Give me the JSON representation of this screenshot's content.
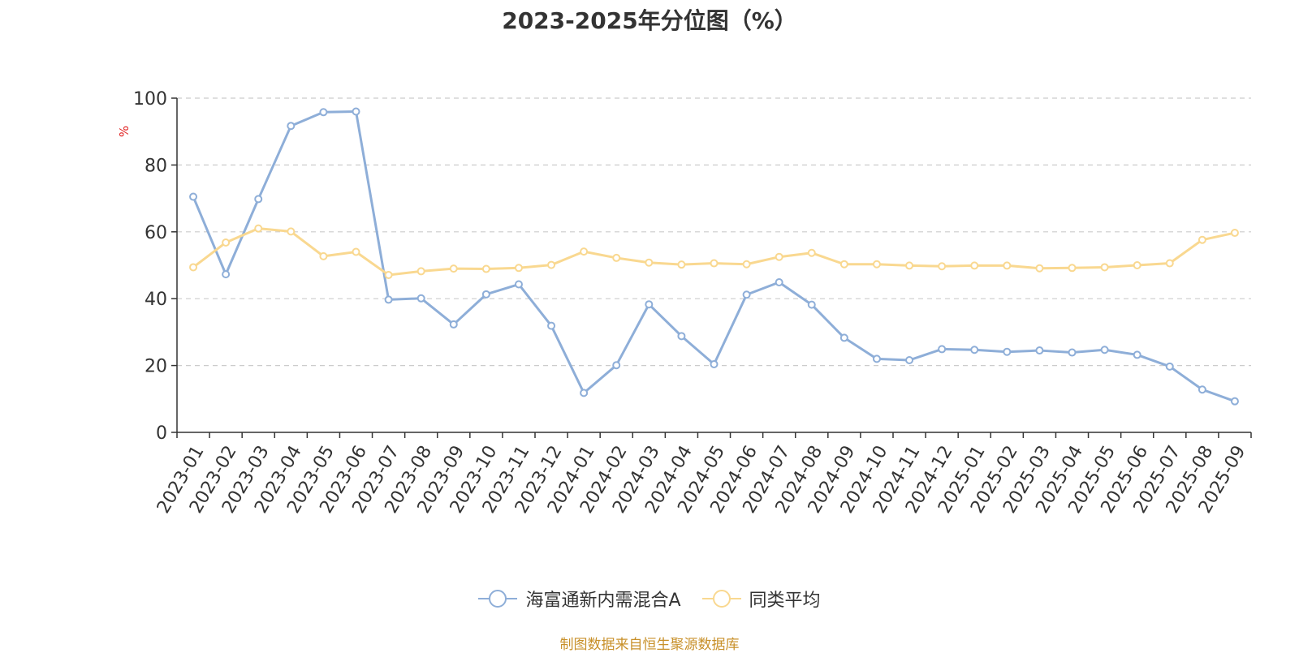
{
  "chart_data": {
    "type": "line",
    "title": "2023-2025年分位图（%）",
    "ylabel": "%",
    "ylim": [
      0,
      100
    ],
    "yticks": [
      0,
      20,
      40,
      60,
      80,
      100
    ],
    "grid": true,
    "legend_position": "bottom",
    "categories": [
      "2023-01",
      "2023-02",
      "2023-03",
      "2023-04",
      "2023-05",
      "2023-06",
      "2023-07",
      "2023-08",
      "2023-09",
      "2023-10",
      "2023-11",
      "2023-12",
      "2024-01",
      "2024-02",
      "2024-03",
      "2024-04",
      "2024-05",
      "2024-06",
      "2024-07",
      "2024-08",
      "2024-09",
      "2024-10",
      "2024-11",
      "2024-12",
      "2025-01",
      "2025-02",
      "2025-03",
      "2025-04",
      "2025-05",
      "2025-06",
      "2025-07",
      "2025-08",
      "2025-09"
    ],
    "series": [
      {
        "name": "海富通新内需混合A",
        "color": "#8eaed8",
        "values": [
          70.5,
          47.3,
          69.8,
          91.7,
          95.8,
          96.0,
          39.7,
          40.1,
          32.3,
          41.3,
          44.3,
          31.9,
          11.8,
          20.1,
          38.3,
          28.8,
          20.4,
          41.2,
          44.9,
          38.2,
          28.3,
          22.0,
          21.6,
          24.9,
          24.7,
          24.1,
          24.5,
          23.9,
          24.7,
          23.2,
          19.7,
          12.8,
          9.3
        ]
      },
      {
        "name": "同类平均",
        "color": "#f9d890",
        "values": [
          49.4,
          56.8,
          61.0,
          60.1,
          52.7,
          54.0,
          47.1,
          48.2,
          49.0,
          48.9,
          49.2,
          50.1,
          54.1,
          52.2,
          50.8,
          50.2,
          50.6,
          50.3,
          52.5,
          53.7,
          50.3,
          50.3,
          49.9,
          49.7,
          49.9,
          49.9,
          49.1,
          49.2,
          49.4,
          50.0,
          50.6,
          57.6,
          59.7
        ]
      }
    ]
  },
  "source_text": "制图数据来自恒生聚源数据库"
}
